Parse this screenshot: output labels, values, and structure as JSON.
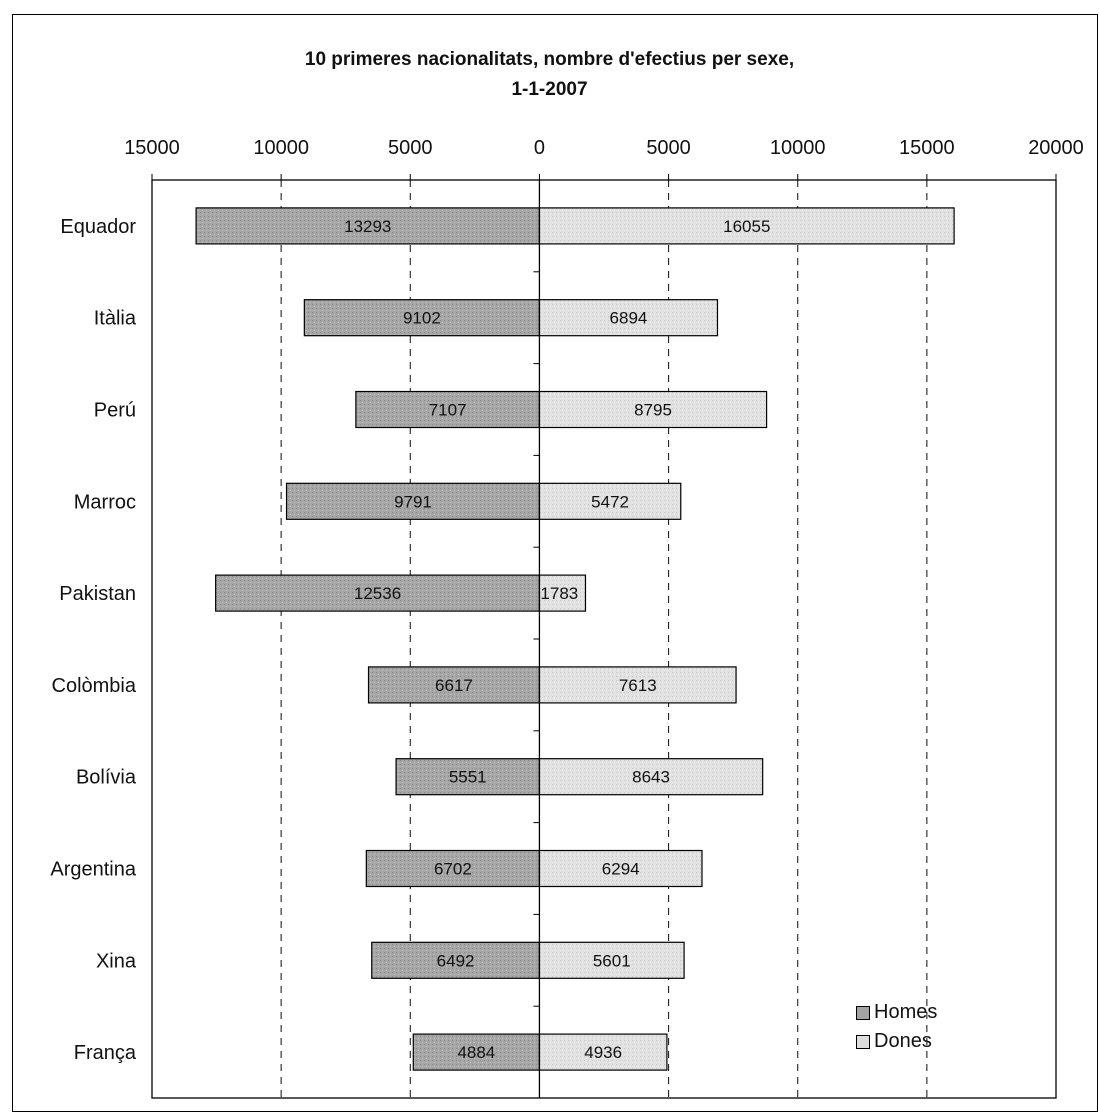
{
  "chart_data": {
    "type": "bar",
    "orientation": "horizontal",
    "layout": "population-pyramid",
    "title_line1": "10 primeres nacionalitats, nombre d'efectius per sexe,",
    "title_line2": "1-1-2007",
    "categories": [
      "Equador",
      "Itàlia",
      "Perú",
      "Marroc",
      "Pakistan",
      "Colòmbia",
      "Bolívia",
      "Argentina",
      "Xina",
      "França"
    ],
    "series": [
      {
        "name": "Homes",
        "side": "left",
        "color": "#a3a3a3",
        "values": [
          13293,
          9102,
          7107,
          9791,
          12536,
          6617,
          5551,
          6702,
          6492,
          4884
        ]
      },
      {
        "name": "Dones",
        "side": "right",
        "color": "#dedede",
        "values": [
          16055,
          6894,
          8795,
          5472,
          1783,
          7613,
          8643,
          6294,
          5601,
          4936
        ]
      }
    ],
    "xlim": [
      -15000,
      20000
    ],
    "x_ticks": [
      -15000,
      -10000,
      -5000,
      0,
      5000,
      10000,
      15000,
      20000
    ],
    "x_tick_labels": [
      "15000",
      "10000",
      "5000",
      "0",
      "5000",
      "10000",
      "15000",
      "20000"
    ],
    "gridlines": "dashed vertical",
    "legend_position": "bottom-right",
    "data_labels": true
  }
}
